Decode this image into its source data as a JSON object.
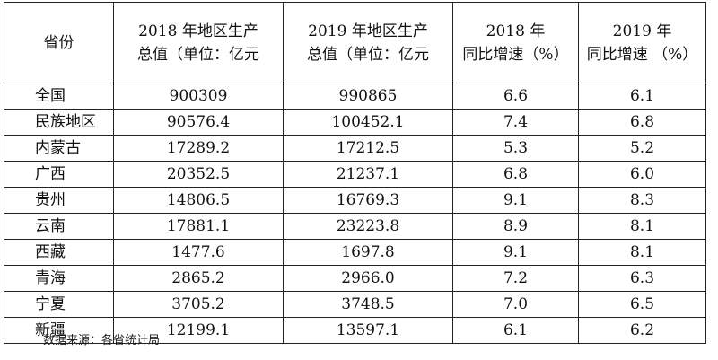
{
  "table": {
    "headers": {
      "province": "省份",
      "gdp_2018_line1": "2018 年地区生产",
      "gdp_2018_line2": "总值（单位：亿元",
      "gdp_2019_line1": "2019 年地区生产",
      "gdp_2019_line2": "总值（单位：亿元",
      "growth_2018_line1": "2018 年",
      "growth_2018_line2": "同比增速（%）",
      "growth_2019_line1": "2019 年",
      "growth_2019_line2": "同比增速 （%）"
    },
    "rows": [
      {
        "province": "全国",
        "gdp_2018": "900309",
        "gdp_2019": "990865",
        "growth_2018": "6.6",
        "growth_2019": "6.1"
      },
      {
        "province": "民族地区",
        "gdp_2018": "90576.4",
        "gdp_2019": "100452.1",
        "growth_2018": "7.4",
        "growth_2019": "6.8"
      },
      {
        "province": "内蒙古",
        "gdp_2018": "17289.2",
        "gdp_2019": "17212.5",
        "growth_2018": "5.3",
        "growth_2019": "5.2"
      },
      {
        "province": "广西",
        "gdp_2018": "20352.5",
        "gdp_2019": "21237.1",
        "growth_2018": "6.8",
        "growth_2019": "6.0"
      },
      {
        "province": "贵州",
        "gdp_2018": "14806.5",
        "gdp_2019": "16769.3",
        "growth_2018": "9.1",
        "growth_2019": "8.3"
      },
      {
        "province": "云南",
        "gdp_2018": "17881.1",
        "gdp_2019": "23223.8",
        "growth_2018": "8.9",
        "growth_2019": "8.1"
      },
      {
        "province": "西藏",
        "gdp_2018": "1477.6",
        "gdp_2019": "1697.8",
        "growth_2018": "9.1",
        "growth_2019": "8.1"
      },
      {
        "province": "青海",
        "gdp_2018": "2865.2",
        "gdp_2019": "2966.0",
        "growth_2018": "7.2",
        "growth_2019": "6.3"
      },
      {
        "province": "宁夏",
        "gdp_2018": "3705.2",
        "gdp_2019": "3748.5",
        "growth_2018": "7.0",
        "growth_2019": "6.5"
      },
      {
        "province": "新疆",
        "gdp_2018": "12199.1",
        "gdp_2019": "13597.1",
        "growth_2018": "6.1",
        "growth_2019": "6.2"
      }
    ]
  },
  "source_note": "数据来源：各省统计局"
}
